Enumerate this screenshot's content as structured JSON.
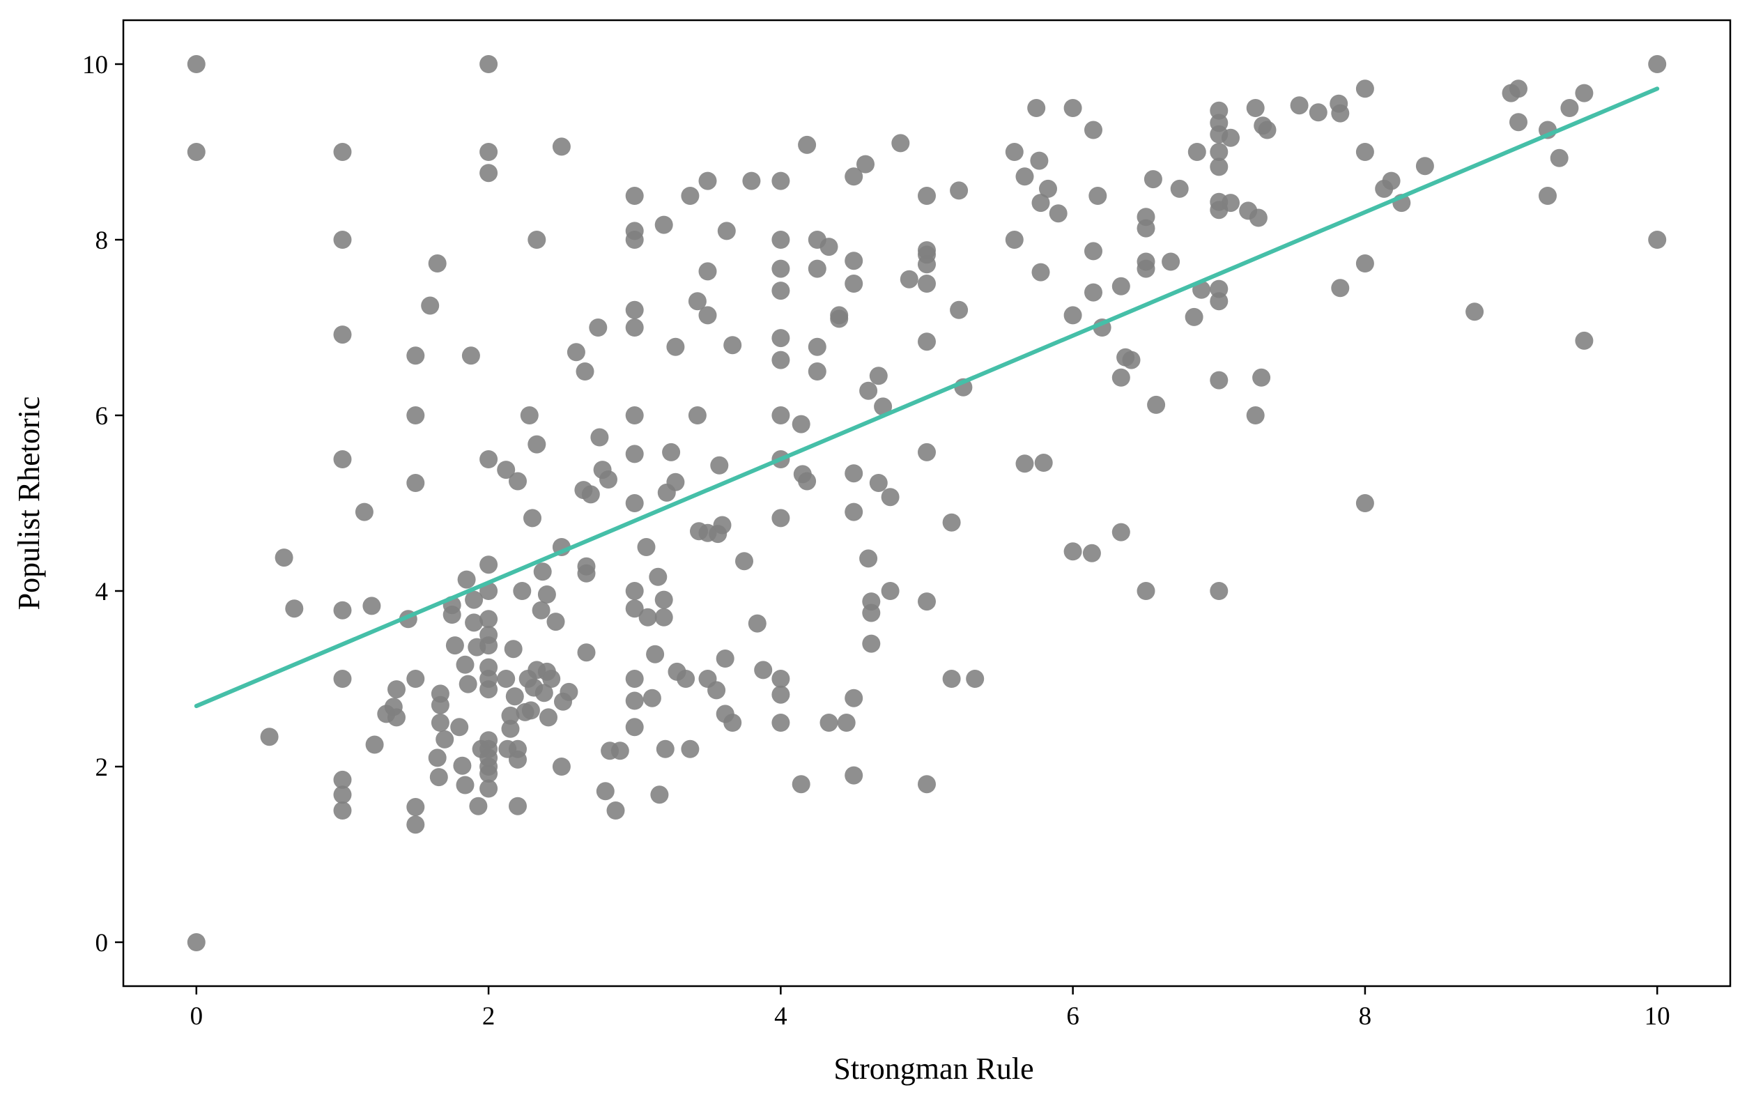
{
  "chart_data": {
    "type": "scatter",
    "title": "",
    "xlabel": "Strongman Rule",
    "ylabel": "Populist Rhetoric",
    "xlim": [
      -0.5,
      10.5
    ],
    "ylim": [
      -0.5,
      10.5
    ],
    "xticks": [
      0,
      2,
      4,
      6,
      8,
      10
    ],
    "yticks": [
      0,
      2,
      4,
      6,
      8,
      10
    ],
    "grid": false,
    "point_color": "#808080",
    "fit_color": "#45bfa8",
    "fit_line": {
      "x": [
        0,
        10
      ],
      "y": [
        2.69,
        9.72
      ]
    },
    "points": [
      [
        0,
        10
      ],
      [
        0,
        9
      ],
      [
        0,
        0
      ],
      [
        1,
        9
      ],
      [
        1,
        8
      ],
      [
        1,
        6.92
      ],
      [
        1,
        5.5
      ],
      [
        1,
        3.78
      ],
      [
        1,
        3
      ],
      [
        1,
        1.85
      ],
      [
        1,
        1.68
      ],
      [
        1,
        1.5
      ],
      [
        0.5,
        2.34
      ],
      [
        0.6,
        4.38
      ],
      [
        0.67,
        3.8
      ],
      [
        1.15,
        4.9
      ],
      [
        1.2,
        3.83
      ],
      [
        1.22,
        2.25
      ],
      [
        1.3,
        2.6
      ],
      [
        1.35,
        2.68
      ],
      [
        1.37,
        2.56
      ],
      [
        1.37,
        2.88
      ],
      [
        1.45,
        3.68
      ],
      [
        1.5,
        6.68
      ],
      [
        1.5,
        6
      ],
      [
        1.5,
        5.23
      ],
      [
        1.5,
        3
      ],
      [
        1.5,
        1.54
      ],
      [
        1.5,
        1.34
      ],
      [
        1.6,
        7.25
      ],
      [
        1.65,
        7.73
      ],
      [
        1.65,
        2.1
      ],
      [
        1.66,
        1.88
      ],
      [
        1.67,
        2.83
      ],
      [
        1.67,
        2.7
      ],
      [
        1.67,
        2.5
      ],
      [
        1.7,
        2.31
      ],
      [
        1.75,
        3.84
      ],
      [
        1.75,
        3.73
      ],
      [
        1.77,
        3.38
      ],
      [
        1.8,
        2.45
      ],
      [
        1.82,
        2.01
      ],
      [
        1.84,
        1.79
      ],
      [
        1.84,
        3.16
      ],
      [
        1.85,
        4.13
      ],
      [
        1.86,
        2.94
      ],
      [
        1.88,
        6.68
      ],
      [
        1.9,
        3.9
      ],
      [
        1.9,
        3.64
      ],
      [
        1.92,
        3.36
      ],
      [
        1.93,
        1.55
      ],
      [
        1.95,
        2.2
      ],
      [
        2,
        10
      ],
      [
        2,
        9
      ],
      [
        2,
        8.76
      ],
      [
        2,
        5.5
      ],
      [
        2,
        4.3
      ],
      [
        2,
        4
      ],
      [
        2,
        3.68
      ],
      [
        2,
        3.5
      ],
      [
        2,
        3.38
      ],
      [
        2,
        3.13
      ],
      [
        2,
        3
      ],
      [
        2,
        2.88
      ],
      [
        2,
        2.3
      ],
      [
        2,
        2.2
      ],
      [
        2,
        2.1
      ],
      [
        2,
        2
      ],
      [
        2,
        1.92
      ],
      [
        2,
        1.75
      ],
      [
        2.12,
        5.38
      ],
      [
        2.12,
        3
      ],
      [
        2.13,
        2.2
      ],
      [
        2.15,
        2.43
      ],
      [
        2.15,
        2.58
      ],
      [
        2.17,
        3.34
      ],
      [
        2.18,
        2.8
      ],
      [
        2.2,
        5.25
      ],
      [
        2.2,
        2.08
      ],
      [
        2.2,
        2.2
      ],
      [
        2.2,
        1.55
      ],
      [
        2.23,
        4
      ],
      [
        2.25,
        2.62
      ],
      [
        2.27,
        3
      ],
      [
        2.29,
        2.64
      ],
      [
        2.28,
        6
      ],
      [
        2.3,
        4.83
      ],
      [
        2.31,
        2.9
      ],
      [
        2.33,
        8
      ],
      [
        2.33,
        5.67
      ],
      [
        2.33,
        3.1
      ],
      [
        2.36,
        3.78
      ],
      [
        2.37,
        4.22
      ],
      [
        2.38,
        2.84
      ],
      [
        2.4,
        3.96
      ],
      [
        2.4,
        3.08
      ],
      [
        2.41,
        2.56
      ],
      [
        2.43,
        3
      ],
      [
        2.46,
        3.65
      ],
      [
        2.5,
        9.06
      ],
      [
        2.5,
        4.5
      ],
      [
        2.5,
        2
      ],
      [
        2.51,
        2.74
      ],
      [
        2.55,
        2.85
      ],
      [
        2.6,
        6.72
      ],
      [
        2.65,
        5.15
      ],
      [
        2.66,
        6.5
      ],
      [
        2.67,
        4.28
      ],
      [
        2.67,
        4.2
      ],
      [
        2.67,
        3.3
      ],
      [
        2.7,
        5.1
      ],
      [
        2.75,
        7
      ],
      [
        2.76,
        5.75
      ],
      [
        2.78,
        5.38
      ],
      [
        2.8,
        1.72
      ],
      [
        2.82,
        5.27
      ],
      [
        2.83,
        2.18
      ],
      [
        2.87,
        1.5
      ],
      [
        2.9,
        2.18
      ],
      [
        3,
        8.5
      ],
      [
        3,
        8.1
      ],
      [
        3,
        8
      ],
      [
        3,
        7.2
      ],
      [
        3,
        7
      ],
      [
        3,
        6
      ],
      [
        3,
        5.56
      ],
      [
        3,
        5
      ],
      [
        3,
        4
      ],
      [
        3,
        3.8
      ],
      [
        3,
        3
      ],
      [
        3,
        2.75
      ],
      [
        3,
        2.45
      ],
      [
        3.08,
        4.5
      ],
      [
        3.09,
        3.7
      ],
      [
        3.12,
        2.78
      ],
      [
        3.14,
        3.28
      ],
      [
        3.16,
        4.16
      ],
      [
        3.17,
        1.68
      ],
      [
        3.2,
        8.17
      ],
      [
        3.2,
        3.9
      ],
      [
        3.2,
        3.7
      ],
      [
        3.21,
        2.2
      ],
      [
        3.22,
        5.12
      ],
      [
        3.25,
        5.58
      ],
      [
        3.28,
        6.78
      ],
      [
        3.28,
        5.24
      ],
      [
        3.29,
        3.08
      ],
      [
        3.35,
        3
      ],
      [
        3.38,
        2.2
      ],
      [
        3.38,
        8.5
      ],
      [
        3.43,
        7.3
      ],
      [
        3.43,
        6
      ],
      [
        3.44,
        4.68
      ],
      [
        3.5,
        8.67
      ],
      [
        3.5,
        7.64
      ],
      [
        3.5,
        7.14
      ],
      [
        3.5,
        4.66
      ],
      [
        3.5,
        3
      ],
      [
        3.56,
        2.87
      ],
      [
        3.57,
        4.65
      ],
      [
        3.58,
        5.43
      ],
      [
        3.6,
        4.75
      ],
      [
        3.62,
        3.23
      ],
      [
        3.62,
        2.6
      ],
      [
        3.63,
        8.1
      ],
      [
        3.67,
        6.8
      ],
      [
        3.67,
        2.5
      ],
      [
        3.75,
        4.34
      ],
      [
        3.8,
        8.67
      ],
      [
        3.84,
        3.63
      ],
      [
        3.88,
        3.1
      ],
      [
        4,
        8.67
      ],
      [
        4,
        8
      ],
      [
        4,
        7.67
      ],
      [
        4,
        7.42
      ],
      [
        4,
        6.88
      ],
      [
        4,
        6.63
      ],
      [
        4,
        6
      ],
      [
        4,
        5.5
      ],
      [
        4,
        4.83
      ],
      [
        4,
        3
      ],
      [
        4,
        2.82
      ],
      [
        4,
        2.5
      ],
      [
        4.14,
        5.9
      ],
      [
        4.14,
        1.8
      ],
      [
        4.15,
        5.33
      ],
      [
        4.18,
        5.25
      ],
      [
        4.18,
        9.08
      ],
      [
        4.25,
        8
      ],
      [
        4.25,
        7.67
      ],
      [
        4.25,
        6.78
      ],
      [
        4.25,
        6.5
      ],
      [
        4.33,
        7.92
      ],
      [
        4.33,
        2.5
      ],
      [
        4.4,
        7.14
      ],
      [
        4.4,
        7.1
      ],
      [
        4.45,
        2.5
      ],
      [
        4.5,
        8.72
      ],
      [
        4.5,
        7.76
      ],
      [
        4.5,
        7.5
      ],
      [
        4.5,
        5.34
      ],
      [
        4.5,
        4.9
      ],
      [
        4.5,
        2.78
      ],
      [
        4.5,
        1.9
      ],
      [
        4.58,
        8.86
      ],
      [
        4.6,
        6.28
      ],
      [
        4.6,
        4.37
      ],
      [
        4.62,
        3.88
      ],
      [
        4.62,
        3.75
      ],
      [
        4.62,
        3.4
      ],
      [
        4.67,
        6.45
      ],
      [
        4.67,
        5.23
      ],
      [
        4.7,
        6.1
      ],
      [
        4.75,
        5.07
      ],
      [
        4.75,
        4
      ],
      [
        4.82,
        9.1
      ],
      [
        4.88,
        7.55
      ],
      [
        5,
        8.5
      ],
      [
        5,
        7.88
      ],
      [
        5,
        7.83
      ],
      [
        5,
        7.72
      ],
      [
        5,
        7.5
      ],
      [
        5,
        6.84
      ],
      [
        5,
        5.58
      ],
      [
        5,
        3.88
      ],
      [
        5,
        1.8
      ],
      [
        5.17,
        4.78
      ],
      [
        5.17,
        3
      ],
      [
        5.22,
        8.56
      ],
      [
        5.22,
        7.2
      ],
      [
        5.25,
        6.32
      ],
      [
        5.33,
        3
      ],
      [
        5.6,
        9
      ],
      [
        5.6,
        8
      ],
      [
        5.67,
        8.72
      ],
      [
        5.67,
        5.45
      ],
      [
        5.75,
        9.5
      ],
      [
        5.77,
        8.9
      ],
      [
        5.78,
        8.42
      ],
      [
        5.78,
        7.63
      ],
      [
        5.8,
        5.46
      ],
      [
        5.83,
        8.58
      ],
      [
        5.9,
        8.3
      ],
      [
        6,
        9.5
      ],
      [
        6,
        7.14
      ],
      [
        6,
        4.45
      ],
      [
        6.13,
        4.43
      ],
      [
        6.14,
        9.25
      ],
      [
        6.14,
        7.87
      ],
      [
        6.14,
        7.4
      ],
      [
        6.17,
        8.5
      ],
      [
        6.2,
        7
      ],
      [
        6.33,
        7.47
      ],
      [
        6.33,
        6.43
      ],
      [
        6.33,
        4.67
      ],
      [
        6.36,
        6.66
      ],
      [
        6.4,
        6.63
      ],
      [
        6.5,
        8.26
      ],
      [
        6.5,
        8.13
      ],
      [
        6.5,
        7.75
      ],
      [
        6.5,
        7.67
      ],
      [
        6.5,
        4
      ],
      [
        6.55,
        8.69
      ],
      [
        6.57,
        6.12
      ],
      [
        6.67,
        7.75
      ],
      [
        6.73,
        8.58
      ],
      [
        6.83,
        7.12
      ],
      [
        6.85,
        9
      ],
      [
        6.88,
        7.43
      ],
      [
        7,
        9.47
      ],
      [
        7,
        9.33
      ],
      [
        7,
        9.2
      ],
      [
        7,
        9
      ],
      [
        7,
        8.83
      ],
      [
        7,
        8.43
      ],
      [
        7,
        8.34
      ],
      [
        7,
        7.44
      ],
      [
        7,
        7.3
      ],
      [
        7,
        6.4
      ],
      [
        7,
        4
      ],
      [
        7.08,
        8.42
      ],
      [
        7.08,
        9.16
      ],
      [
        7.2,
        8.33
      ],
      [
        7.25,
        9.5
      ],
      [
        7.25,
        6
      ],
      [
        7.27,
        8.25
      ],
      [
        7.29,
        6.43
      ],
      [
        7.3,
        9.3
      ],
      [
        7.33,
        9.25
      ],
      [
        7.55,
        9.53
      ],
      [
        7.68,
        9.45
      ],
      [
        7.82,
        9.55
      ],
      [
        7.83,
        9.44
      ],
      [
        7.83,
        7.45
      ],
      [
        8,
        9.72
      ],
      [
        8,
        9
      ],
      [
        8,
        7.73
      ],
      [
        8,
        5
      ],
      [
        8.13,
        8.58
      ],
      [
        8.18,
        8.67
      ],
      [
        8.25,
        8.42
      ],
      [
        8.41,
        8.84
      ],
      [
        8.75,
        7.18
      ],
      [
        9,
        9.67
      ],
      [
        9.05,
        9.72
      ],
      [
        9.05,
        9.34
      ],
      [
        9.25,
        9.25
      ],
      [
        9.25,
        8.5
      ],
      [
        9.33,
        8.93
      ],
      [
        9.4,
        9.5
      ],
      [
        9.5,
        9.67
      ],
      [
        9.5,
        6.85
      ],
      [
        10,
        10
      ],
      [
        10,
        8
      ]
    ],
    "x_tick_labels": [
      "0",
      "2",
      "4",
      "6",
      "8",
      "10"
    ],
    "y_tick_labels": [
      "0",
      "2",
      "4",
      "6",
      "8",
      "10"
    ]
  }
}
